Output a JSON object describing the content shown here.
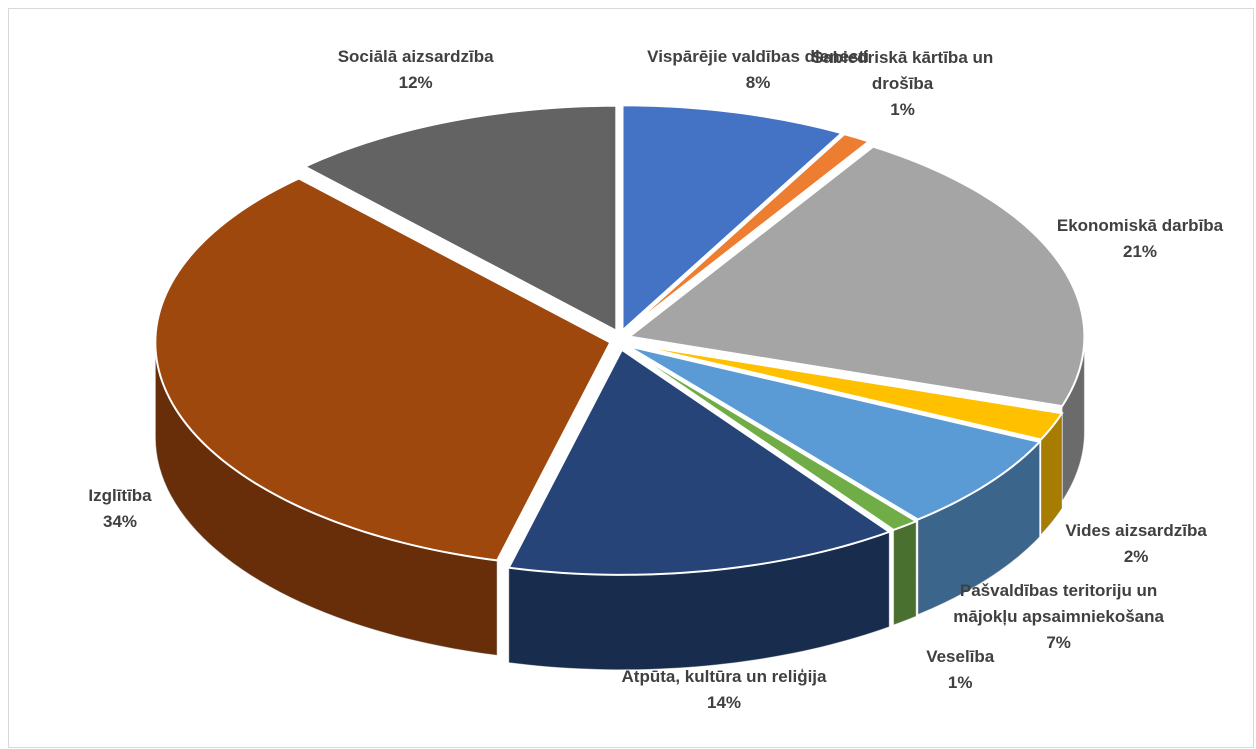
{
  "chart_data": {
    "type": "pie3d",
    "categories": [
      "Vispārējie valdības dienesti",
      "Sabiedriskā kārtība un drošība",
      "Ekonomiskā darbība",
      "Vides aizsardzība",
      "Pašvaldības teritoriju un mājokļu apsaimniekošana",
      "Veselība",
      "Atpūta, kultūra un reliģija",
      "Izglītība",
      "Sociālā aizsardzība"
    ],
    "values": [
      8,
      1,
      21,
      2,
      7,
      1,
      14,
      34,
      12
    ],
    "value_labels": [
      "8%",
      "1%",
      "21%",
      "2%",
      "7%",
      "1%",
      "14%",
      "34%",
      "12%"
    ],
    "colors": [
      "#4472c4",
      "#ed7d31",
      "#a5a5a5",
      "#ffc000",
      "#5b9bd5",
      "#70ad47",
      "#264478",
      "#9e480e",
      "#636363"
    ]
  }
}
